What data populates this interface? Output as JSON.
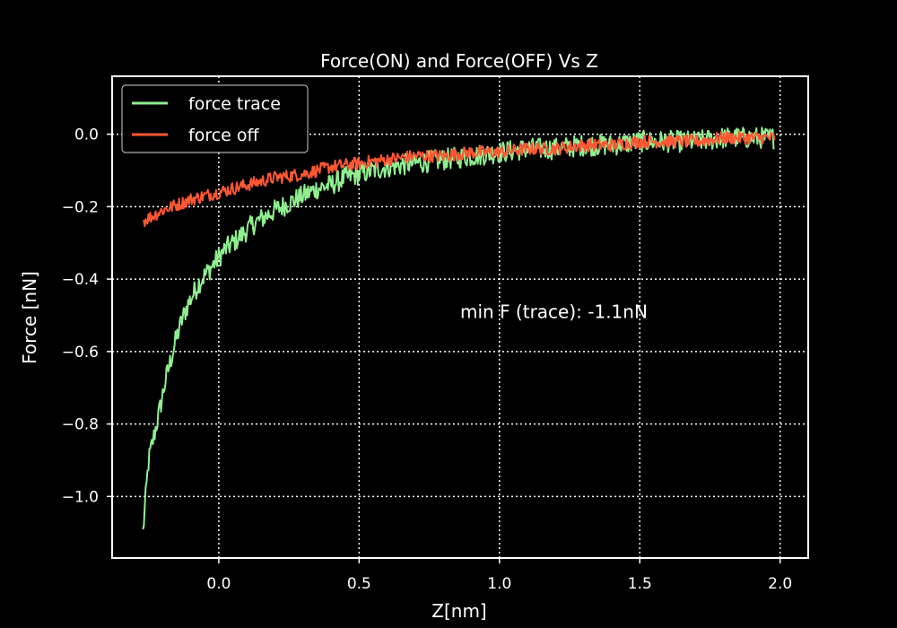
{
  "chart_data": {
    "type": "line",
    "title": "Force(ON) and Force(OFF) Vs Z",
    "xlabel": "Z[nm]",
    "ylabel": "Force [nN]",
    "xlim": [
      -0.38,
      2.1
    ],
    "ylim": [
      -1.17,
      0.16
    ],
    "xticks": [
      0.0,
      0.5,
      1.0,
      1.5,
      2.0
    ],
    "xtick_labels": [
      "0.0",
      "0.5",
      "1.0",
      "1.5",
      "2.0"
    ],
    "yticks": [
      -1.0,
      -0.8,
      -0.6,
      -0.4,
      -0.2,
      0.0
    ],
    "ytick_labels": [
      "−1.0",
      "−0.8",
      "−0.6",
      "−0.4",
      "−0.2",
      "0.0"
    ],
    "grid": true,
    "legend_position": "top-left",
    "annotation": {
      "text": "min F (trace): -1.1nN",
      "x": 0.86,
      "y": -0.49
    },
    "series": [
      {
        "name": "force trace",
        "color": "#90EE90",
        "x": [
          -0.27,
          -0.26,
          -0.25,
          -0.23,
          -0.21,
          -0.19,
          -0.17,
          -0.15,
          -0.13,
          -0.11,
          -0.09,
          -0.07,
          -0.05,
          -0.03,
          -0.01,
          0.0,
          0.02,
          0.05,
          0.08,
          0.12,
          0.16,
          0.2,
          0.25,
          0.3,
          0.35,
          0.4,
          0.45,
          0.5,
          0.6,
          0.7,
          0.8,
          0.9,
          1.0,
          1.1,
          1.2,
          1.3,
          1.4,
          1.5,
          1.6,
          1.7,
          1.8,
          1.9,
          1.98
        ],
        "y": [
          -1.1,
          -1.0,
          -0.9,
          -0.83,
          -0.76,
          -0.68,
          -0.62,
          -0.56,
          -0.51,
          -0.47,
          -0.44,
          -0.41,
          -0.39,
          -0.37,
          -0.35,
          -0.34,
          -0.32,
          -0.3,
          -0.28,
          -0.25,
          -0.23,
          -0.21,
          -0.19,
          -0.17,
          -0.15,
          -0.14,
          -0.12,
          -0.11,
          -0.09,
          -0.08,
          -0.07,
          -0.06,
          -0.05,
          -0.04,
          -0.04,
          -0.03,
          -0.03,
          -0.02,
          -0.02,
          -0.02,
          -0.01,
          -0.01,
          -0.01
        ],
        "noise": 0.03
      },
      {
        "name": "force off",
        "color": "#FF5733",
        "x": [
          -0.27,
          -0.2,
          -0.1,
          0.0,
          0.1,
          0.2,
          0.3,
          0.4,
          0.5,
          0.6,
          0.7,
          0.8,
          0.9,
          1.0,
          1.1,
          1.2,
          1.3,
          1.4,
          1.5,
          1.6,
          1.7,
          1.8,
          1.9,
          1.98
        ],
        "y": [
          -0.24,
          -0.21,
          -0.18,
          -0.16,
          -0.14,
          -0.12,
          -0.11,
          -0.09,
          -0.08,
          -0.07,
          -0.06,
          -0.06,
          -0.05,
          -0.05,
          -0.04,
          -0.04,
          -0.03,
          -0.03,
          -0.02,
          -0.02,
          -0.02,
          -0.01,
          -0.01,
          -0.01
        ],
        "noise": 0.018
      }
    ]
  }
}
